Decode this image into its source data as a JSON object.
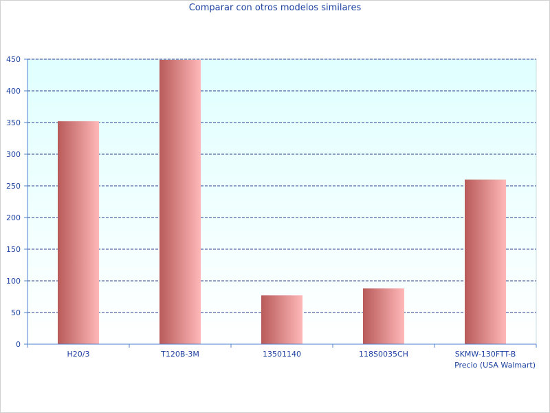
{
  "chart_data": {
    "type": "bar",
    "title": "Comparar con otros modelos similares",
    "xlabel": "Precio (USA Walmart)",
    "ylabel": "",
    "categories": [
      "H20/3",
      "T120B-3M",
      "13501140",
      "118S0035CH",
      "SKMW-130FTT-B"
    ],
    "values": [
      352,
      449,
      77,
      88,
      260
    ],
    "ylim": [
      0,
      450
    ],
    "yticks": [
      0,
      50,
      100,
      150,
      200,
      250,
      300,
      350,
      400,
      450
    ],
    "grid": true,
    "legend": "none",
    "colors": {
      "bar_dark": "#b85a5a",
      "bar_light": "#ffb8b8",
      "plot_bg_top": "#e0ffff",
      "plot_bg_bottom": "#ffffff",
      "grid": "#2a3f8f",
      "axis": "#4d7fcc",
      "text": "#1a3fa0"
    }
  }
}
